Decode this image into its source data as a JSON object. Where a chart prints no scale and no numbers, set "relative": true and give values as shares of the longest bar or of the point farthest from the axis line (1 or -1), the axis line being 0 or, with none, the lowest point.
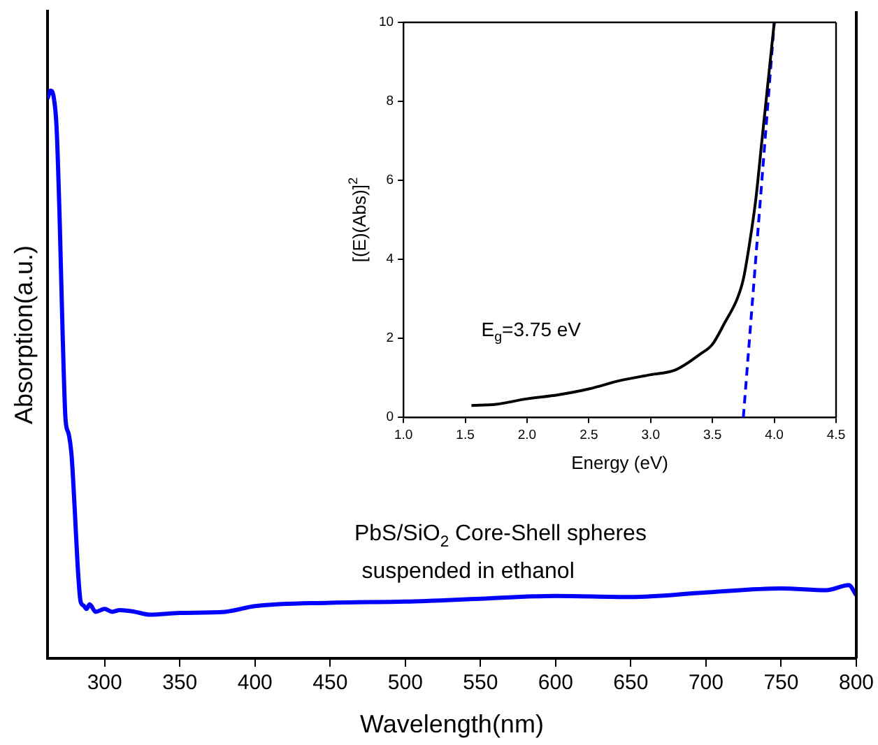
{
  "chart_data": [
    {
      "type": "line",
      "xlabel": "Wavelength(nm)",
      "ylabel": "Absorption(a.u.)",
      "relative": true,
      "xlim": [
        262,
        800
      ],
      "xticks": [
        300,
        350,
        400,
        450,
        500,
        550,
        600,
        650,
        700,
        750,
        800
      ],
      "grid": false,
      "legend": false,
      "marker": "none",
      "line_style": "solid",
      "series": [
        {
          "color": "#0000ff",
          "x": [
            262,
            264,
            266,
            268,
            270,
            272,
            274,
            276,
            278,
            280,
            282,
            284,
            286,
            288,
            290,
            294,
            300,
            305,
            310,
            320,
            330,
            350,
            380,
            400,
            450,
            500,
            550,
            600,
            650,
            700,
            750,
            780,
            795,
            800
          ],
          "values": [
            0.986,
            1.0,
            0.99,
            0.936,
            0.78,
            0.576,
            0.42,
            0.396,
            0.357,
            0.267,
            0.165,
            0.1,
            0.093,
            0.087,
            0.095,
            0.082,
            0.087,
            0.082,
            0.085,
            0.082,
            0.077,
            0.08,
            0.082,
            0.092,
            0.098,
            0.1,
            0.105,
            0.11,
            0.108,
            0.116,
            0.123,
            0.12,
            0.129,
            0.111
          ]
        }
      ],
      "annotations": [
        "PbS/SiO$_{2}$ Core-Shell spheres",
        "suspended in ethanol"
      ]
    },
    {
      "type": "line",
      "xlabel": "Energy (eV)",
      "ylabel": "[(E)(Abs)]$^{2}$",
      "xlim": [
        1.0,
        4.5
      ],
      "ylim": [
        0,
        10
      ],
      "xticks": [
        {
          "value": 1,
          "label": "1.0"
        },
        1.5,
        {
          "value": 2,
          "label": "2.0"
        },
        2.5,
        {
          "value": 3,
          "label": "3.0"
        },
        3.5,
        {
          "value": 4,
          "label": "4.0"
        },
        4.5
      ],
      "yticks": [
        0,
        2,
        4,
        6,
        8,
        10
      ],
      "grid": false,
      "legend": false,
      "marker": "none",
      "series": [
        {
          "color": "#000000",
          "line_style": "solid",
          "x": [
            1.55,
            1.75,
            2.0,
            2.25,
            2.5,
            2.75,
            3.0,
            3.2,
            3.4,
            3.5,
            3.6,
            3.7,
            3.75,
            3.8,
            3.85,
            3.9,
            3.95,
            4.0
          ],
          "values": [
            0.3,
            0.33,
            0.47,
            0.57,
            0.72,
            0.93,
            1.08,
            1.2,
            1.6,
            1.85,
            2.4,
            3.0,
            3.5,
            4.4,
            5.5,
            7.0,
            8.5,
            10
          ]
        },
        {
          "color": "#0000ff",
          "line_style": "dashed",
          "x": [
            3.75,
            4.0
          ],
          "values": [
            0,
            10
          ]
        }
      ],
      "annotations": [
        "E$_{g}$=3.75 eV"
      ]
    }
  ]
}
